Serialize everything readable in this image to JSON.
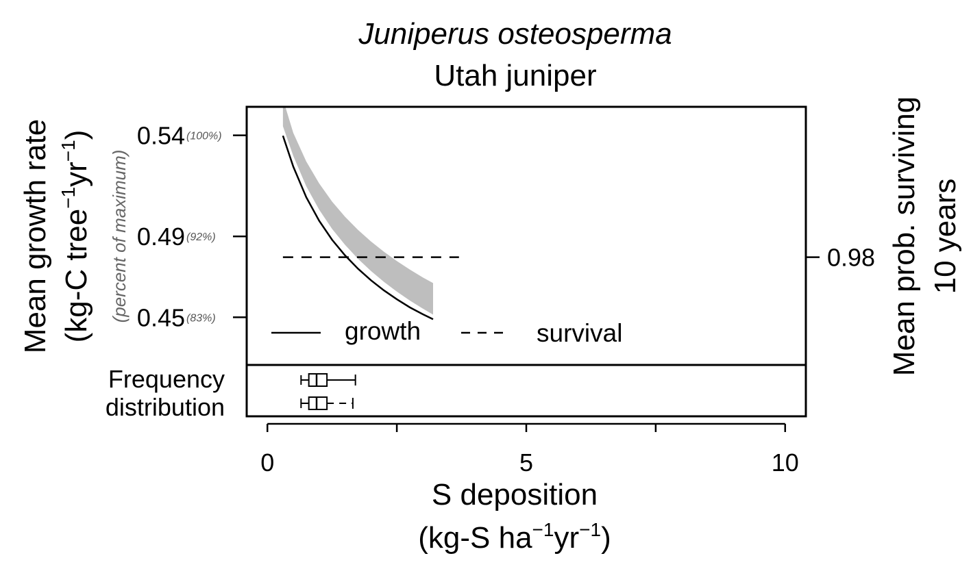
{
  "chart_data": {
    "type": "line",
    "title": "Juniperus osteosperma",
    "subtitle": "Utah juniper",
    "xlabel": "S deposition",
    "xlabel_units": {
      "pre": "(kg-S ha",
      "exp1": "−1",
      "mid": "yr",
      "exp2": "−1",
      "post": ")"
    },
    "ylabel": "Mean growth rate",
    "ylabel_units": {
      "pre": "(kg-C tree",
      "exp1": "−1",
      "mid": "yr",
      "exp2": "−1",
      "post": ")"
    },
    "ylabel_pct": "(percent of maximum)",
    "y2label_line1": "Mean prob. surviving",
    "y2label_line2": "10 years",
    "xlim": [
      -0.4,
      10.4
    ],
    "ylim": [
      0.4264,
      0.5541
    ],
    "x_ticks": [
      {
        "value": 0,
        "label": "0"
      },
      {
        "value": 2.5,
        "label": ""
      },
      {
        "value": 5,
        "label": "5"
      },
      {
        "value": 7.5,
        "label": ""
      },
      {
        "value": 10,
        "label": "10"
      }
    ],
    "y_ticks": [
      {
        "value": 0.54,
        "label": "0.54",
        "pct": "(100%)"
      },
      {
        "value": 0.49,
        "label": "0.49",
        "pct": "(92%)"
      },
      {
        "value": 0.45,
        "label": "0.45",
        "pct": "(83%)"
      }
    ],
    "y2_ticks": [
      {
        "value": 0.98,
        "label": "0.98",
        "y_equiv": 0.4797
      }
    ],
    "series": [
      {
        "name": "growth",
        "style": "solid",
        "x": [
          0.3,
          0.5,
          0.75,
          1.0,
          1.25,
          1.5,
          1.75,
          2.0,
          2.25,
          2.5,
          2.75,
          3.0,
          3.2
        ],
        "y": [
          0.5398,
          0.5245,
          0.5094,
          0.4977,
          0.4883,
          0.4806,
          0.474,
          0.4683,
          0.4633,
          0.4589,
          0.4549,
          0.4515,
          0.449
        ]
      },
      {
        "name": "survival",
        "style": "dashed",
        "x": [
          0.3,
          3.7
        ],
        "y_right": [
          0.98,
          0.98
        ]
      }
    ],
    "band": {
      "x": [
        0.3,
        0.5,
        0.75,
        1.0,
        1.25,
        1.5,
        1.75,
        2.0,
        2.25,
        2.5,
        2.75,
        3.0,
        3.2
      ],
      "lower": [
        0.5445,
        0.5298,
        0.5148,
        0.5032,
        0.4937,
        0.4858,
        0.4789,
        0.4729,
        0.4675,
        0.4627,
        0.4583,
        0.4543,
        0.4513
      ],
      "upper": [
        0.558,
        0.5412,
        0.5271,
        0.5162,
        0.5072,
        0.4997,
        0.4932,
        0.4875,
        0.4824,
        0.4778,
        0.4736,
        0.4697,
        0.4669
      ]
    },
    "legend": {
      "growth": "growth",
      "survival": "survival",
      "placement": "bottom"
    },
    "freq_label_line1": "Frequency",
    "freq_label_line2": "distribution",
    "boxplots": [
      {
        "min": 0.65,
        "q1": 0.8,
        "median": 0.95,
        "q3": 1.15,
        "max": 1.7
      },
      {
        "min": 0.65,
        "q1": 0.8,
        "median": 0.95,
        "q3": 1.15,
        "max": 1.65
      }
    ],
    "colors": {
      "band": "#bebebe",
      "line": "#000000"
    }
  }
}
